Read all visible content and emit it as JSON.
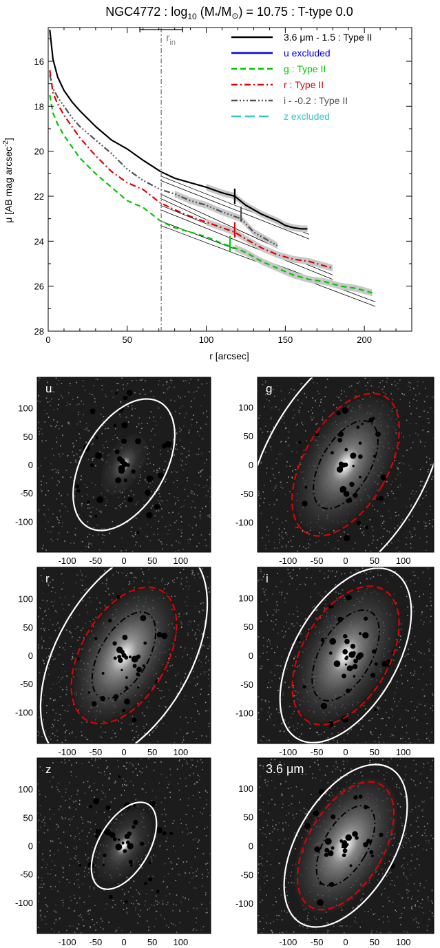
{
  "colors": {
    "text": "#000000",
    "rin": "#808080",
    "legend_u": "#0000e0",
    "legend_g": "#00c800",
    "legend_r": "#e00000",
    "legend_i": "#505050",
    "legend_z": "#30c8c8",
    "ellipse_outer": "#ffffff",
    "ellipse_red": "#e00000"
  },
  "chart_data": [
    {
      "type": "line",
      "title_parts": {
        "a": "NGC4772 : log",
        "sub": "10",
        "b": " (M",
        "sub2": "*",
        "c": "/M",
        "sub3": "⊙",
        "d": ") = 10.75 : T-type 0.0"
      },
      "xlabel": "r [arcsec]",
      "ylabel": "μ [AB mag arcsec",
      "ylabel_sup": "-2",
      "ylabel_end": "]",
      "xlim": [
        0,
        230
      ],
      "ylim": [
        28,
        14.5
      ],
      "y_inverted": true,
      "xticks": [
        0,
        50,
        100,
        150,
        200
      ],
      "yticks": [
        16,
        18,
        20,
        22,
        24,
        26,
        28
      ],
      "grid": false,
      "legend_position": "top-right",
      "rin": {
        "x": 71.5,
        "label": "r",
        "label_sub": "in",
        "err": [
          58,
          85
        ]
      },
      "series": [
        {
          "name": "3.6 μm - 1.5 : Type II",
          "color": "#000000",
          "dash": "",
          "width": 2.2,
          "x": [
            1,
            3,
            6,
            10,
            15,
            20,
            30,
            40,
            50,
            60,
            71,
            80,
            90,
            100,
            110,
            118,
            125,
            135,
            145,
            150,
            155,
            160,
            164
          ],
          "y": [
            14.6,
            15.9,
            16.7,
            17.3,
            17.8,
            18.2,
            18.9,
            19.5,
            19.9,
            20.4,
            20.9,
            21.2,
            21.4,
            21.6,
            21.85,
            22.0,
            22.4,
            22.8,
            23.1,
            23.3,
            23.4,
            23.45,
            23.45
          ],
          "break_x": 118,
          "break_y": 22.0
        },
        {
          "name": "u excluded",
          "color": "#0000e0",
          "dash": "",
          "width": 2.2,
          "x": [],
          "y": []
        },
        {
          "name": "g : Type II",
          "color": "#00c800",
          "dash": "8,5",
          "width": 2.2,
          "x": [
            1,
            3,
            6,
            10,
            15,
            20,
            30,
            40,
            50,
            60,
            71,
            80,
            90,
            100,
            110,
            118,
            125,
            135,
            145,
            155,
            165,
            175,
            185,
            195,
            200,
            205
          ],
          "y": [
            17.5,
            18.3,
            18.8,
            19.3,
            19.8,
            20.3,
            21.0,
            21.6,
            22.2,
            22.5,
            23.1,
            23.4,
            23.6,
            23.8,
            24.1,
            24.3,
            24.5,
            24.9,
            25.2,
            25.5,
            25.7,
            25.8,
            26.0,
            26.1,
            26.2,
            26.3
          ],
          "break_x": 115,
          "break_y": 24.1
        },
        {
          "name": "r : Type II",
          "color": "#e00000",
          "dash": "9,4,2,4",
          "width": 2.2,
          "x": [
            1,
            3,
            6,
            10,
            15,
            20,
            30,
            40,
            50,
            60,
            71,
            80,
            90,
            100,
            110,
            118,
            125,
            135,
            145,
            155,
            165,
            175,
            180
          ],
          "y": [
            16.4,
            17.4,
            17.9,
            18.4,
            18.9,
            19.4,
            20.2,
            20.9,
            21.4,
            21.7,
            22.3,
            22.6,
            22.9,
            23.15,
            23.4,
            23.6,
            23.9,
            24.3,
            24.6,
            24.8,
            24.9,
            25.1,
            25.2
          ],
          "break_x": 118,
          "break_y": 23.5
        },
        {
          "name": "i - -0.2 : Type II",
          "color": "#505050",
          "dash": "9,3,2,3,2,3,2,3",
          "width": 2.2,
          "x": [
            1,
            3,
            6,
            10,
            15,
            20,
            30,
            40,
            50,
            60,
            71,
            80,
            90,
            100,
            110,
            122,
            130,
            140,
            145
          ],
          "y": [
            16.6,
            17.2,
            17.6,
            18.0,
            18.5,
            18.9,
            19.5,
            20.1,
            20.8,
            21.3,
            21.7,
            21.9,
            22.2,
            22.4,
            22.7,
            23.0,
            23.6,
            24.0,
            24.2
          ],
          "break_x": 122,
          "break_y": 22.8
        },
        {
          "name": "z excluded",
          "color": "#30c8c8",
          "dash": "14,6",
          "width": 2.2,
          "x": [],
          "y": []
        }
      ],
      "fits": [
        {
          "x": [
            71,
            165
          ],
          "y": [
            21.1,
            23.7
          ]
        },
        {
          "x": [
            71,
            165
          ],
          "y": [
            21.3,
            23.9
          ]
        },
        {
          "x": [
            71,
            145
          ],
          "y": [
            21.9,
            24.3
          ]
        },
        {
          "x": [
            71,
            145
          ],
          "y": [
            22.1,
            24.5
          ]
        },
        {
          "x": [
            71,
            180
          ],
          "y": [
            22.4,
            25.5
          ]
        },
        {
          "x": [
            71,
            180
          ],
          "y": [
            22.6,
            25.7
          ]
        },
        {
          "x": [
            71,
            207
          ],
          "y": [
            23.1,
            26.7
          ]
        },
        {
          "x": [
            71,
            207
          ],
          "y": [
            23.3,
            26.9
          ]
        }
      ]
    },
    {
      "type": "image",
      "panels": [
        {
          "label": "u",
          "ticks_x": [
            -100,
            -50,
            0,
            50,
            100
          ],
          "ticks_y": [
            100,
            50,
            0,
            -50,
            -100
          ],
          "brightness": 0.55,
          "ellipses": [
            {
              "rx": 62,
              "ry": 108,
              "angle": 30,
              "style": "solid"
            }
          ]
        },
        {
          "label": "g",
          "ticks_x": [
            -100,
            -50,
            0,
            50,
            100
          ],
          "ticks_y": [
            100,
            50,
            0,
            -50,
            -100
          ],
          "brightness": 0.85,
          "ellipses": [
            {
              "rx": 118,
              "ry": 210,
              "angle": 30,
              "style": "solid"
            },
            {
              "rx": 62,
              "ry": 116,
              "angle": 30,
              "style": "red"
            },
            {
              "rx": 36,
              "ry": 72,
              "angle": 30,
              "style": "dashdot"
            }
          ]
        },
        {
          "label": "r",
          "ticks_x": [
            -100,
            -50,
            0,
            50,
            100
          ],
          "ticks_y": [
            100,
            50,
            0,
            -50,
            -100
          ],
          "brightness": 1.0,
          "ellipses": [
            {
              "rx": 100,
              "ry": 180,
              "angle": 30,
              "style": "solid"
            },
            {
              "rx": 64,
              "ry": 112,
              "angle": 30,
              "style": "red"
            },
            {
              "rx": 36,
              "ry": 72,
              "angle": 30,
              "style": "dashdot"
            }
          ]
        },
        {
          "label": "i",
          "ticks_x": [
            -100,
            -50,
            0,
            50,
            100
          ],
          "ticks_y": [
            100,
            50,
            0,
            -50,
            -100
          ],
          "brightness": 0.9,
          "ellipses": [
            {
              "rx": 76,
              "ry": 142,
              "angle": 30,
              "style": "solid"
            },
            {
              "rx": 64,
              "ry": 112,
              "angle": 30,
              "style": "red"
            },
            {
              "rx": 38,
              "ry": 74,
              "angle": 30,
              "style": "dashdot"
            }
          ]
        },
        {
          "label": "z",
          "ticks_x": [
            -100,
            -50,
            0,
            50,
            100
          ],
          "ticks_y": [
            100,
            50,
            0,
            -50,
            -100
          ],
          "brightness": 0.6,
          "ellipses": [
            {
              "rx": 38,
              "ry": 72,
              "angle": 30,
              "style": "solid"
            }
          ]
        },
        {
          "label": "3.6 μm",
          "ticks_x": [
            -100,
            -50,
            0,
            50,
            100
          ],
          "ticks_y": [
            100,
            50,
            0,
            -50,
            -100
          ],
          "brightness": 0.95,
          "ellipses": [
            {
              "rx": 72,
              "ry": 132,
              "angle": 30,
              "style": "solid"
            },
            {
              "rx": 56,
              "ry": 104,
              "angle": 30,
              "style": "red"
            },
            {
              "rx": 32,
              "ry": 66,
              "angle": 30,
              "style": "dashdot"
            }
          ]
        }
      ]
    }
  ]
}
